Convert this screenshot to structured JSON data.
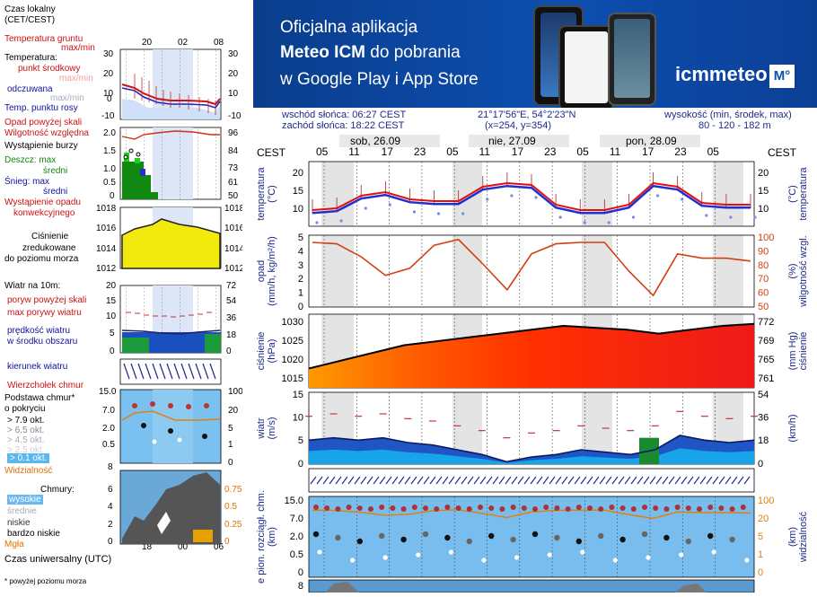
{
  "legend": {
    "time_local": "Czas lokalny",
    "time_local2": "(CET/CEST)",
    "mini_hours_top": [
      "20",
      "02",
      "08"
    ],
    "soil_temp": "Temperatura gruntu",
    "soil_temp2": "max/min",
    "temperature": "Temperatura:",
    "mid_point": "punkt środkowy",
    "max_min": "max/min",
    "feels": "odczuwana",
    "feels_maxmin": "max/min",
    "dew": "Temp. punktu rosy",
    "precip_over": "Opad powyżej skali",
    "humidity": "Wilgotność względna",
    "storm": "Wystąpienie burzy",
    "rain_max": "Deszcz: max",
    "rain_mid": "średni",
    "snow_max": "Śnieg:   max",
    "snow_mid": "średni",
    "conv": "Wystąpienie opadu",
    "conv2": "konwekcyjnego",
    "pressure": "Ciśnienie",
    "pressure2": "zredukowane",
    "pressure3": "do poziomu morza",
    "wind10": "Wiatr na 10m:",
    "gust_over": "poryw powyżej skali",
    "gust_max": "max porywy wiatru",
    "wind_speed": "prędkość wiatru",
    "wind_area": "w środku obszaru",
    "wind_dir": "kierunek wiatru",
    "cloud_top": "Wierzchołek chmur",
    "cloud_base": "Podstawa chmur*",
    "cloud_base2": "o pokryciu",
    "okt1": "> 7.9 okt.",
    "okt2": "> 6.5 okt.",
    "okt3": "> 4.5 okt.",
    "okt4": "> 2.5 okt.",
    "okt5": "> 0.1 okt.",
    "visibility": "Widzialność",
    "clouds": "Chmury:",
    "high": "wysokie",
    "mid": "średnie",
    "low": "niskie",
    "very_low": "bardzo niskie",
    "fog": "Mgła",
    "utc": "Czas uniwersalny (UTC)",
    "mini_hours_bottom": [
      "18",
      "00",
      "06"
    ],
    "footnote": "* powyżej poziomu morza",
    "left_ticks": {
      "temp": [
        "30",
        "20",
        "10",
        "0",
        "-10"
      ],
      "prec": [
        "2.0",
        "1.5",
        "1.0",
        "0.5",
        "0"
      ],
      "press": [
        "1018",
        "1016",
        "1014",
        "1012"
      ],
      "wind": [
        "20",
        "15",
        "10",
        "5",
        "0"
      ],
      "cloud": [
        "15.0",
        "7.0",
        "2.0",
        "0.5",
        "0"
      ],
      "ch": [
        "8",
        "6",
        "4",
        "2",
        "0"
      ]
    },
    "right_ticks": {
      "temp": [
        "30",
        "20",
        "10",
        "0",
        "-10"
      ],
      "hum": [
        "96",
        "84",
        "73",
        "61",
        "50"
      ],
      "press": [
        "1018",
        "1016",
        "1014",
        "1012"
      ],
      "wind": [
        "72",
        "54",
        "36",
        "18",
        "0"
      ],
      "cloud": [
        "100",
        "20",
        "5",
        "1",
        "0"
      ],
      "ch": [
        "0.75",
        "0.5",
        "0.25",
        "0"
      ]
    }
  },
  "banner": {
    "line1": "Oficjalna aplikacja",
    "line2a": "Meteo ICM",
    "line2b": " do pobrania",
    "line3": "w Google Play i App Store",
    "logo": "icmmeteo",
    "logo_badge": "M°"
  },
  "info": {
    "sunrise": "wschód słońca: 06:27 CEST",
    "sunset": "zachód słońca: 18:22 CEST",
    "coords": "21°17'56\"E, 54°2'23\"N",
    "grid": "(x=254,  y=354)",
    "elev_label": "wysokość (min, środek, max)",
    "elev": "80 - 120 - 182 m"
  },
  "chart": {
    "tz": "CEST",
    "days": [
      "sob, 26.09",
      "nie, 27.09",
      "pon, 28.09"
    ],
    "hours": [
      "05",
      "11",
      "17",
      "23",
      "05",
      "11",
      "17",
      "23",
      "05",
      "11",
      "17",
      "23",
      "05"
    ],
    "panels": {
      "temp": {
        "label": "temperatura",
        "unit": "(°C)",
        "ticks": [
          "20",
          "15",
          "10"
        ]
      },
      "prec": {
        "label": "opad",
        "unit": "(mm/h, kg/m²/h)",
        "label_r": "wilgotność wzgl.",
        "unit_r": "(%)",
        "ticks": [
          "5",
          "4",
          "3",
          "2",
          "1",
          "0"
        ],
        "ticks_r": [
          "100",
          "90",
          "80",
          "70",
          "60",
          "50"
        ]
      },
      "press": {
        "label": "ciśnienie",
        "unit": "(hPa)",
        "label_r": "ciśnienie",
        "unit_r": "(mm Hg)",
        "ticks": [
          "1030",
          "1025",
          "1020",
          "1015"
        ],
        "ticks_r": [
          "772",
          "769",
          "765",
          "761"
        ]
      },
      "wind": {
        "label": "wiatr",
        "unit": "(m/s)",
        "unit_r": "(km/h)",
        "ticks": [
          "15",
          "10",
          "5",
          "0"
        ],
        "ticks_r": [
          "54",
          "36",
          "18",
          "0"
        ]
      },
      "cloud": {
        "label": "wys. podst. chm.",
        "unit": "(km)",
        "label_r": "widzialność",
        "unit_r": "(km)",
        "ticks": [
          "15.0",
          "7.0",
          "2.0",
          "0.5",
          "0"
        ],
        "ticks_r": [
          "100",
          "20",
          "5",
          "1",
          "0"
        ],
        "left_extra": "e pion. rozciągł. chm."
      },
      "ch": {
        "tick": "8"
      }
    },
    "series": {
      "temp_mid": [
        9.5,
        10,
        13.5,
        14.5,
        12.5,
        12,
        12,
        16,
        17,
        16.5,
        11,
        9.5,
        9.5,
        11,
        17,
        16,
        11.5,
        11,
        11
      ],
      "pressure": [
        1018,
        1020,
        1022,
        1024,
        1025,
        1026,
        1027,
        1028,
        1029,
        1028.5,
        1028,
        1027,
        1028,
        1029,
        1029.5
      ],
      "humidity": [
        95,
        94,
        85,
        72,
        77,
        93,
        97,
        80,
        62,
        87,
        94,
        95,
        95,
        75,
        58,
        87,
        84,
        84,
        82
      ],
      "wind": [
        5,
        5.5,
        5,
        5.5,
        4.5,
        4,
        3,
        2,
        0.5,
        1.5,
        2,
        3,
        2.5,
        2,
        3,
        6,
        5,
        4.5,
        5
      ]
    }
  }
}
